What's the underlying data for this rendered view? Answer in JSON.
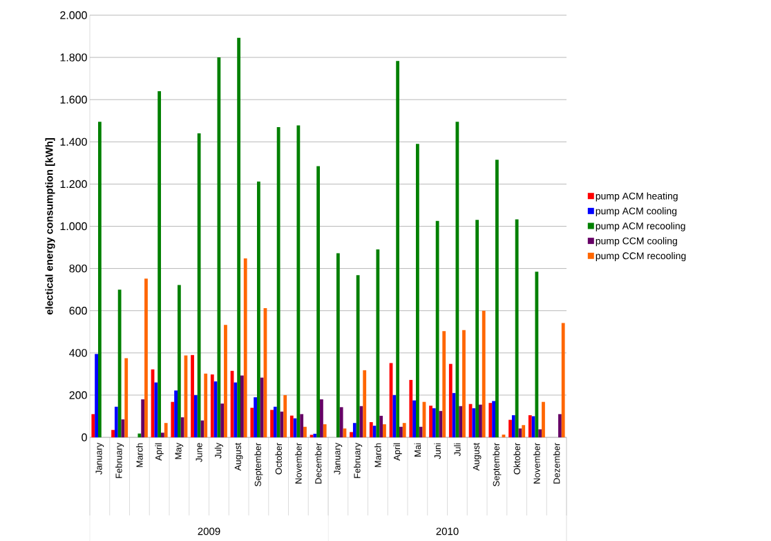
{
  "chart_data": {
    "type": "bar",
    "ylabel": "electical energy  consumption [kWh]",
    "categories": [
      "January",
      "February",
      "March",
      "April",
      "May",
      "June",
      "July",
      "August",
      "September",
      "October",
      "November",
      "December",
      "January",
      "February",
      "March",
      "April",
      "Mai",
      "Juni",
      "Juli",
      "August",
      "September",
      "Oktober",
      "November",
      "Dezember"
    ],
    "annotations": [
      "2009",
      "2010"
    ],
    "series": [
      {
        "name": "pump ACM heating",
        "color": "#ff0000",
        "values": [
          110,
          35,
          0,
          322,
          168,
          390,
          298,
          315,
          140,
          130,
          103,
          12,
          0,
          25,
          72,
          352,
          272,
          150,
          348,
          158,
          163,
          83,
          105,
          0
        ]
      },
      {
        "name": "pump ACM cooling",
        "color": "#0000ff",
        "values": [
          395,
          145,
          0,
          260,
          222,
          200,
          265,
          260,
          190,
          145,
          90,
          17,
          0,
          68,
          55,
          200,
          175,
          138,
          210,
          138,
          172,
          105,
          100,
          0
        ]
      },
      {
        "name": "pump ACM recooling",
        "color": "#008000",
        "values": [
          1495,
          700,
          18,
          1640,
          722,
          1440,
          1800,
          1893,
          1212,
          1470,
          1478,
          1285,
          872,
          768,
          890,
          1783,
          1390,
          1025,
          1495,
          1030,
          1315,
          1033,
          785,
          0
        ]
      },
      {
        "name": "pump CCM cooling",
        "color": "#660066",
        "values": [
          0,
          85,
          180,
          22,
          95,
          80,
          160,
          293,
          283,
          122,
          110,
          180,
          143,
          148,
          102,
          50,
          50,
          125,
          148,
          155,
          0,
          42,
          38,
          110
        ]
      },
      {
        "name": "pump CCM recooling",
        "color": "#ff6600",
        "values": [
          0,
          375,
          752,
          68,
          388,
          302,
          533,
          848,
          612,
          200,
          50,
          62,
          42,
          318,
          62,
          68,
          168,
          503,
          508,
          600,
          13,
          58,
          168,
          542
        ]
      }
    ],
    "ylim": [
      0,
      2000
    ],
    "yticks": [
      0,
      {
        "value": 200,
        "label": "200"
      },
      {
        "value": 400,
        "label": "400"
      },
      {
        "value": 600,
        "label": "600"
      },
      {
        "value": 800,
        "label": "800"
      },
      {
        "value": 1000,
        "label": "1.000"
      },
      {
        "value": 1200,
        "label": "1.200"
      },
      {
        "value": 1400,
        "label": "1.400"
      },
      {
        "value": 1600,
        "label": "1.600"
      },
      {
        "value": 1800,
        "label": "1.800"
      },
      {
        "value": 2000,
        "label": "2.000"
      }
    ],
    "grid": "y",
    "legend": "right"
  }
}
